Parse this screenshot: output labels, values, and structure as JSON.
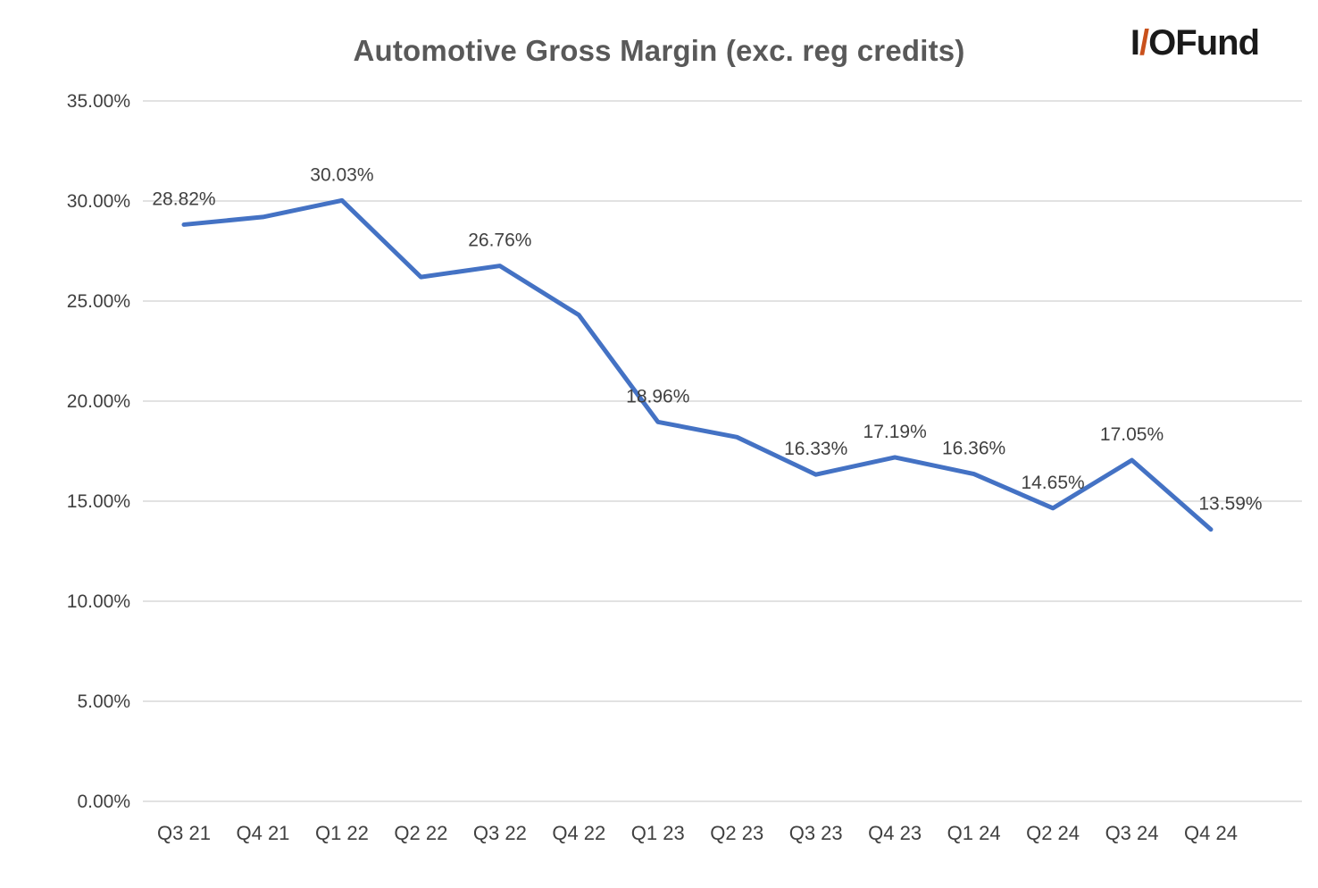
{
  "title": "Automotive Gross Margin (exc. reg credits)",
  "logo": {
    "part_i": "I",
    "part_slash": "/",
    "part_o": "O",
    "part_rest": "Fund",
    "slash_color": "#C9511C",
    "text_color": "#1a1a1a"
  },
  "chart_data": {
    "type": "line",
    "title": "Automotive Gross Margin (exc. reg credits)",
    "categories": [
      "Q3 21",
      "Q4 21",
      "Q1 22",
      "Q2 22",
      "Q3 22",
      "Q4 22",
      "Q1 23",
      "Q2 23",
      "Q3 23",
      "Q4 23",
      "Q1 24",
      "Q2 24",
      "Q3 24",
      "Q4 24"
    ],
    "values": [
      28.82,
      29.2,
      30.03,
      26.2,
      26.76,
      24.3,
      18.96,
      18.2,
      16.33,
      17.19,
      16.36,
      14.65,
      17.05,
      13.59
    ],
    "point_labels": [
      "28.82%",
      "",
      "30.03%",
      "",
      "26.76%",
      "",
      "18.96%",
      "",
      "16.33%",
      "17.19%",
      "16.36%",
      "14.65%",
      "17.05%",
      "13.59%"
    ],
    "ylim": [
      0,
      35
    ],
    "ytick_step": 5,
    "ytick_labels": [
      "0.00%",
      "5.00%",
      "10.00%",
      "15.00%",
      "20.00%",
      "25.00%",
      "30.00%",
      "35.00%"
    ],
    "grid": true,
    "legend": "none",
    "line_color": "#4472C4",
    "grid_color": "#D9D9D9",
    "tick_label_color": "#404040",
    "data_label_color": "#404040"
  }
}
